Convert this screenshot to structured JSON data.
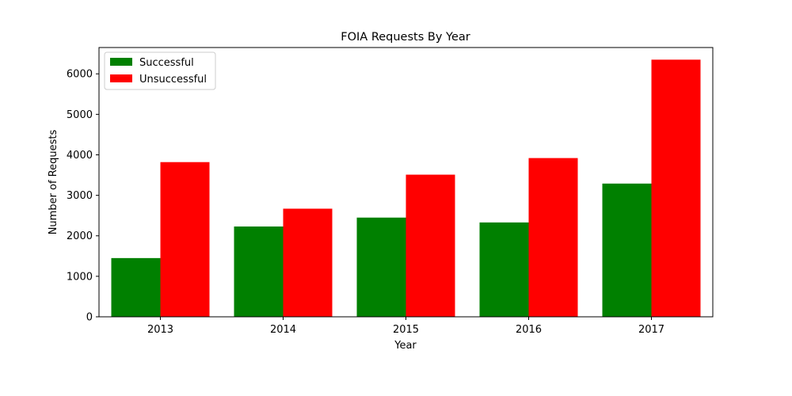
{
  "chart_data": {
    "type": "bar",
    "title": "FOIA Requests By Year",
    "xlabel": "Year",
    "ylabel": "Number of Requests",
    "categories": [
      "2013",
      "2014",
      "2015",
      "2016",
      "2017"
    ],
    "series": [
      {
        "name": "Successful",
        "color": "#008000",
        "values": [
          1450,
          2230,
          2450,
          2330,
          3290
        ]
      },
      {
        "name": "Unsuccessful",
        "color": "#ff0000",
        "values": [
          3820,
          2670,
          3510,
          3920,
          6350
        ]
      }
    ],
    "ylim": [
      0,
      6650
    ],
    "yticks": [
      0,
      1000,
      2000,
      3000,
      4000,
      5000,
      6000
    ],
    "grid": false,
    "legend_position": "top-left"
  }
}
